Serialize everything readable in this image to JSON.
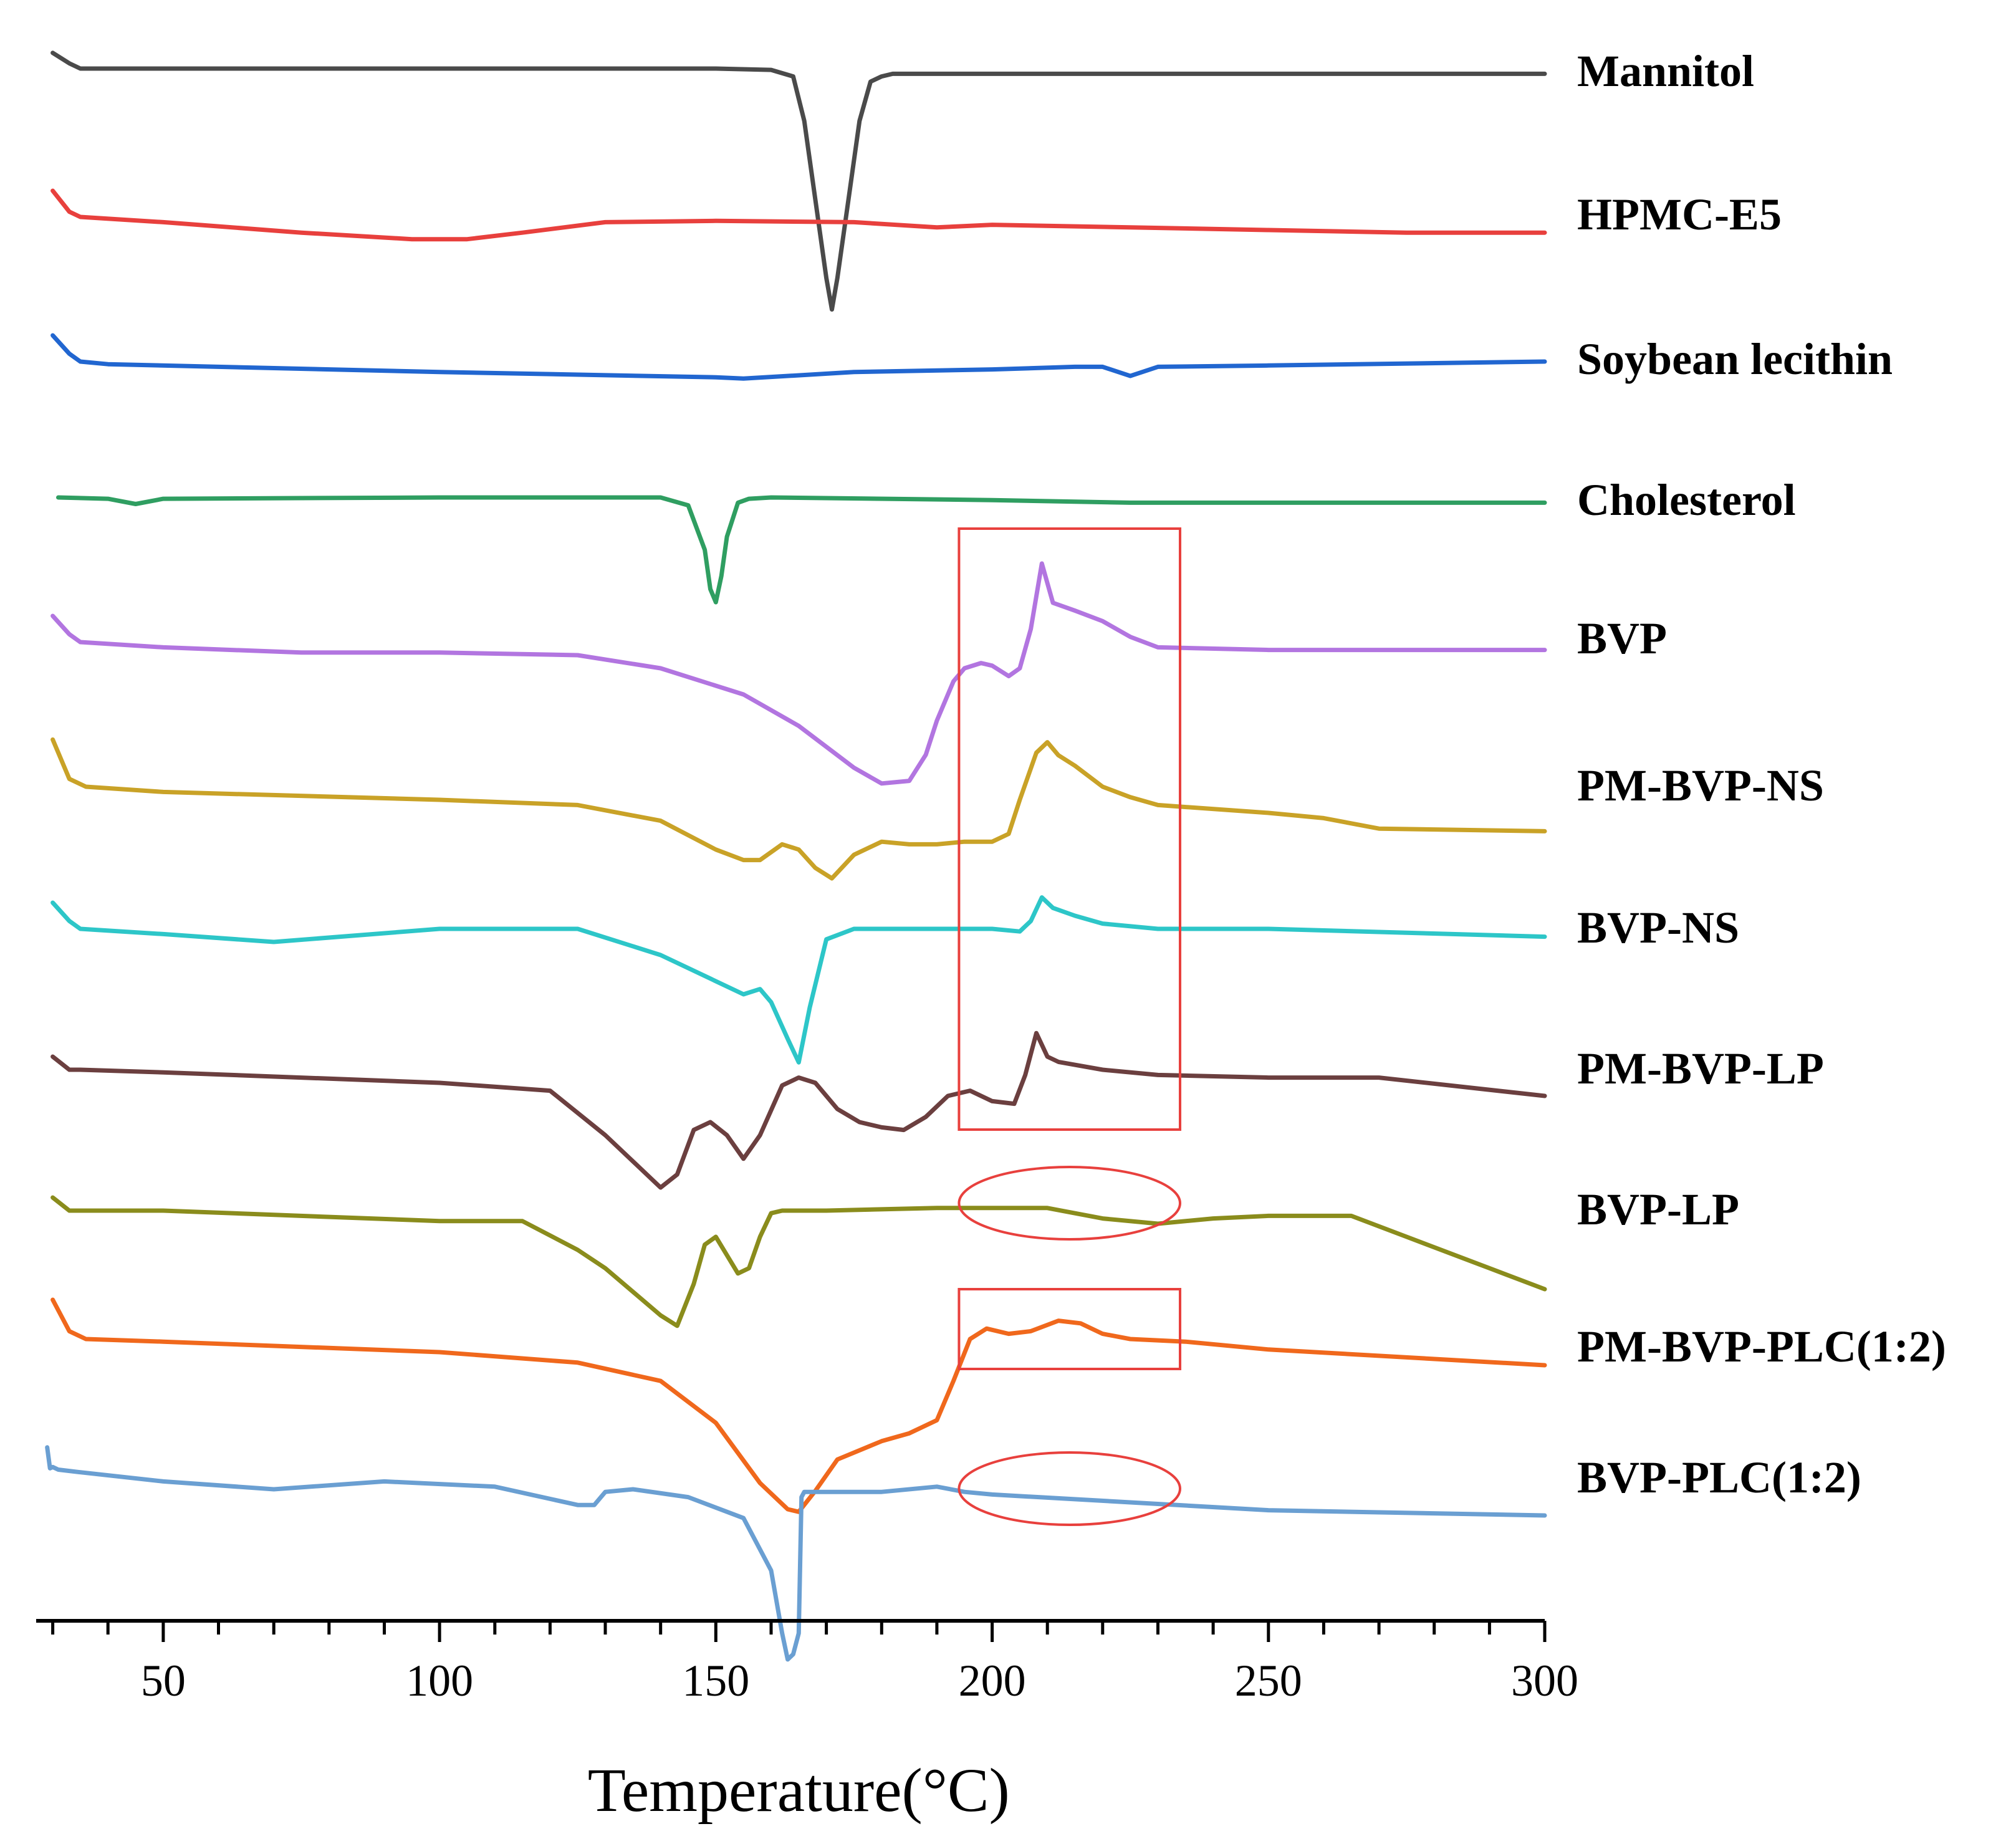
{
  "chart_data": {
    "type": "line",
    "title": "",
    "xlabel": "Temperature(°C)",
    "ylabel": "",
    "xlim": [
      27,
      300
    ],
    "xticks": [
      50,
      100,
      150,
      200,
      250,
      300
    ],
    "grid": false,
    "y_units": "relative heat flow (offset per curve, no axis)",
    "series": [
      {
        "name": "Mannitol",
        "color": "#4a4a4a",
        "x": [
          30,
          33,
          35,
          50,
          100,
          150,
          160,
          164,
          166,
          168,
          170,
          171,
          172,
          174,
          176,
          178,
          180,
          182,
          190,
          200,
          250,
          300
        ],
        "y": [
          0.6,
          0.2,
          0,
          0,
          0,
          0,
          -0.05,
          -0.3,
          -2,
          -5,
          -8,
          -9.2,
          -8,
          -5,
          -2,
          -0.5,
          -0.3,
          -0.2,
          -0.2,
          -0.2,
          -0.2,
          -0.2
        ]
      },
      {
        "name": "HPMC-E5",
        "color": "#e8403d",
        "x": [
          30,
          33,
          35,
          50,
          75,
          95,
          105,
          115,
          130,
          150,
          175,
          190,
          200,
          225,
          250,
          275,
          290,
          300
        ],
        "y": [
          1,
          0.2,
          0,
          -0.2,
          -0.6,
          -0.85,
          -0.85,
          -0.6,
          -0.2,
          -0.15,
          -0.2,
          -0.4,
          -0.3,
          -0.4,
          -0.5,
          -0.6,
          -0.6,
          -0.6
        ]
      },
      {
        "name": "Soybean lecithin",
        "color": "#2166d0",
        "x": [
          30,
          33,
          35,
          40,
          100,
          150,
          155,
          175,
          200,
          215,
          220,
          225,
          230,
          250,
          300
        ],
        "y": [
          1,
          0.3,
          0,
          -0.1,
          -0.4,
          -0.6,
          -0.65,
          -0.4,
          -0.3,
          -0.2,
          -0.2,
          -0.55,
          -0.2,
          -0.15,
          0
        ]
      },
      {
        "name": "Cholesterol",
        "color": "#2f9e61",
        "x": [
          31,
          40,
          45,
          50,
          100,
          130,
          140,
          145,
          148,
          149,
          150,
          151,
          152,
          154,
          156,
          160,
          200,
          225,
          250,
          300
        ],
        "y": [
          0,
          -0.05,
          -0.25,
          -0.05,
          0,
          0,
          0,
          -0.3,
          -2,
          -3.5,
          -4,
          -3,
          -1.5,
          -0.2,
          -0.05,
          0,
          -0.1,
          -0.2,
          -0.2,
          -0.2
        ]
      },
      {
        "name": "BVP",
        "color": "#b275e0",
        "x": [
          30,
          33,
          35,
          50,
          75,
          100,
          125,
          140,
          155,
          165,
          175,
          180,
          185,
          188,
          190,
          193,
          195,
          198,
          200,
          203,
          205,
          207,
          209,
          211,
          215,
          220,
          225,
          230,
          250,
          300
        ],
        "y": [
          1,
          0.3,
          0,
          -0.2,
          -0.4,
          -0.4,
          -0.5,
          -1,
          -2,
          -3.2,
          -4.8,
          -5.4,
          -5.3,
          -4.3,
          -3,
          -1.5,
          -1,
          -0.8,
          -0.9,
          -1.3,
          -1,
          0.5,
          3,
          1.5,
          1.2,
          0.8,
          0.2,
          -0.2,
          -0.3,
          -0.3
        ]
      },
      {
        "name": "PM-BVP-NS",
        "color": "#c9a227",
        "x": [
          30,
          33,
          36,
          50,
          100,
          125,
          140,
          150,
          155,
          158,
          162,
          165,
          168,
          171,
          175,
          180,
          185,
          190,
          195,
          200,
          203,
          205,
          208,
          210,
          212,
          215,
          220,
          225,
          230,
          250,
          260,
          270,
          300
        ],
        "y": [
          1.8,
          0.3,
          0,
          -0.2,
          -0.5,
          -0.7,
          -1.3,
          -2.4,
          -2.8,
          -2.8,
          -2.2,
          -2.4,
          -3.1,
          -3.5,
          -2.6,
          -2.1,
          -2.2,
          -2.2,
          -2.1,
          -2.1,
          -1.8,
          -0.5,
          1.3,
          1.7,
          1.2,
          0.8,
          0,
          -0.4,
          -0.7,
          -1,
          -1.2,
          -1.6,
          -1.7
        ]
      },
      {
        "name": "BVP-NS",
        "color": "#2dc6c8",
        "x": [
          30,
          33,
          35,
          50,
          70,
          100,
          125,
          140,
          155,
          158,
          160,
          163,
          165,
          167,
          170,
          175,
          180,
          200,
          205,
          207,
          209,
          211,
          215,
          220,
          230,
          250,
          300
        ],
        "y": [
          1,
          0.3,
          0,
          -0.2,
          -0.5,
          0,
          0,
          -1,
          -2.5,
          -2.3,
          -2.8,
          -4.2,
          -5.1,
          -3,
          -0.4,
          0,
          0,
          0,
          -0.1,
          0.3,
          1.2,
          0.8,
          0.5,
          0.2,
          0,
          0,
          -0.3
        ]
      },
      {
        "name": "PM-BVP-LP",
        "color": "#6b3f3f",
        "x": [
          30,
          33,
          35,
          50,
          100,
          120,
          130,
          140,
          143,
          146,
          149,
          152,
          155,
          158,
          162,
          165,
          168,
          172,
          176,
          180,
          184,
          188,
          192,
          196,
          200,
          204,
          206,
          208,
          210,
          212,
          220,
          230,
          250,
          270,
          300
        ],
        "y": [
          0.5,
          0,
          0,
          -0.1,
          -0.5,
          -0.8,
          -2.5,
          -4.5,
          -4,
          -2.3,
          -2,
          -2.5,
          -3.4,
          -2.5,
          -0.6,
          -0.3,
          -0.5,
          -1.5,
          -2,
          -2.2,
          -2.3,
          -1.8,
          -1,
          -0.8,
          -1.2,
          -1.3,
          -0.2,
          1.4,
          0.5,
          0.3,
          0,
          -0.2,
          -0.3,
          -0.3,
          -1
        ]
      },
      {
        "name": "BVP-LP",
        "color": "#8a8c1c",
        "x": [
          30,
          33,
          35,
          50,
          100,
          115,
          125,
          130,
          140,
          143,
          146,
          148,
          150,
          152,
          154,
          156,
          158,
          160,
          162,
          170,
          190,
          210,
          220,
          230,
          240,
          250,
          260,
          265,
          275,
          290,
          300
        ],
        "y": [
          0.5,
          0,
          0,
          0,
          -0.4,
          -0.4,
          -1.5,
          -2.2,
          -4,
          -4.4,
          -2.8,
          -1.3,
          -1,
          -1.7,
          -2.4,
          -2.2,
          -1,
          -0.1,
          0,
          0,
          0.1,
          0.1,
          -0.3,
          -0.5,
          -0.3,
          -0.2,
          -0.2,
          -0.2,
          -1,
          -2.2,
          -3
        ]
      },
      {
        "name": "PM-BVP-PLC(1:2)",
        "color": "#f0681c",
        "x": [
          30,
          33,
          36,
          50,
          100,
          125,
          140,
          150,
          158,
          163,
          165,
          168,
          172,
          180,
          185,
          190,
          193,
          196,
          199,
          203,
          207,
          212,
          216,
          220,
          225,
          235,
          250,
          300
        ],
        "y": [
          1.5,
          0.3,
          0,
          -0.1,
          -0.5,
          -0.9,
          -1.6,
          -3.2,
          -5.5,
          -6.5,
          -6.6,
          -5.8,
          -4.6,
          -3.9,
          -3.6,
          -3.1,
          -1.6,
          0,
          0.4,
          0.2,
          0.3,
          0.7,
          0.6,
          0.2,
          0,
          -0.1,
          -0.4,
          -1
        ]
      },
      {
        "name": "BVP-PLC(1:2)",
        "color": "#6a9fd2",
        "x": [
          29,
          29.5,
          30,
          31,
          35,
          50,
          70,
          90,
          110,
          125,
          128,
          130,
          135,
          145,
          155,
          160,
          162,
          163,
          164,
          165,
          165.5,
          166,
          180,
          190,
          195,
          200,
          250,
          300
        ],
        "y": [
          1.1,
          0.3,
          0.35,
          0.25,
          0.15,
          -0.2,
          -0.5,
          -0.2,
          -0.4,
          -1.1,
          -1.1,
          -0.6,
          -0.5,
          -0.8,
          -1.6,
          -3.6,
          -6,
          -7,
          -6.8,
          -6,
          -0.8,
          -0.6,
          -0.6,
          -0.4,
          -0.6,
          -0.7,
          -1.3,
          -1.5
        ]
      }
    ],
    "annotations": [
      {
        "shape": "rectangle",
        "x_range": [
          194,
          234
        ],
        "spans": "BVP to PM-BVP-LP",
        "color": "#e8403d"
      },
      {
        "shape": "ellipse",
        "x_range": [
          194,
          234
        ],
        "on_series": "BVP-LP",
        "color": "#e8403d"
      },
      {
        "shape": "rectangle",
        "x_range": [
          194,
          234
        ],
        "on_series": "PM-BVP-PLC(1:2)",
        "color": "#e8403d"
      },
      {
        "shape": "ellipse",
        "x_range": [
          194,
          234
        ],
        "on_series": "BVP-PLC(1:2)",
        "color": "#e8403d"
      }
    ]
  }
}
